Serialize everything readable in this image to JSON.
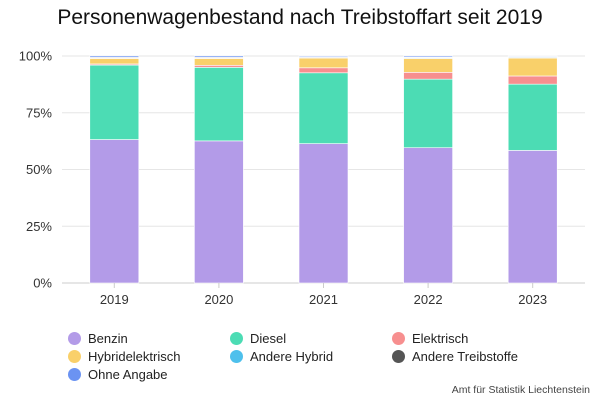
{
  "chart_data": {
    "type": "bar",
    "stacked": true,
    "title": "Personenwagenbestand nach Treibstoffart seit 2019",
    "categories": [
      "2019",
      "2020",
      "2021",
      "2022",
      "2023"
    ],
    "yticks": [
      "0%",
      "25%",
      "50%",
      "75%",
      "100%"
    ],
    "ylim": [
      0,
      100
    ],
    "grid": true,
    "legend_position": "bottom",
    "series": [
      {
        "name": "Benzin",
        "color": "#b39be8",
        "values": [
          63.2,
          62.6,
          61.4,
          59.6,
          58.4
        ]
      },
      {
        "name": "Diesel",
        "color": "#4cdcb4",
        "values": [
          32.8,
          32.4,
          31.2,
          30.2,
          29.2
        ]
      },
      {
        "name": "Elektrisch",
        "color": "#f78f8f",
        "values": [
          0.5,
          0.9,
          2.2,
          3.0,
          3.6
        ]
      },
      {
        "name": "Hybridelektrisch",
        "color": "#f9d06a",
        "values": [
          2.4,
          3.0,
          4.3,
          6.1,
          7.9
        ]
      },
      {
        "name": "Andere Hybrid",
        "color": "#4ec0ec",
        "values": [
          0.2,
          0.2,
          0.2,
          0.3,
          0.3
        ]
      },
      {
        "name": "Andere Treibstoffe",
        "color": "#555555",
        "values": [
          0.3,
          0.3,
          0.3,
          0.3,
          0.3
        ]
      },
      {
        "name": "Ohne Angabe",
        "color": "#6b93f2",
        "values": [
          0.6,
          0.6,
          0.4,
          0.5,
          0.3
        ]
      }
    ]
  },
  "source": "Amt für Statistik Liechtenstein"
}
